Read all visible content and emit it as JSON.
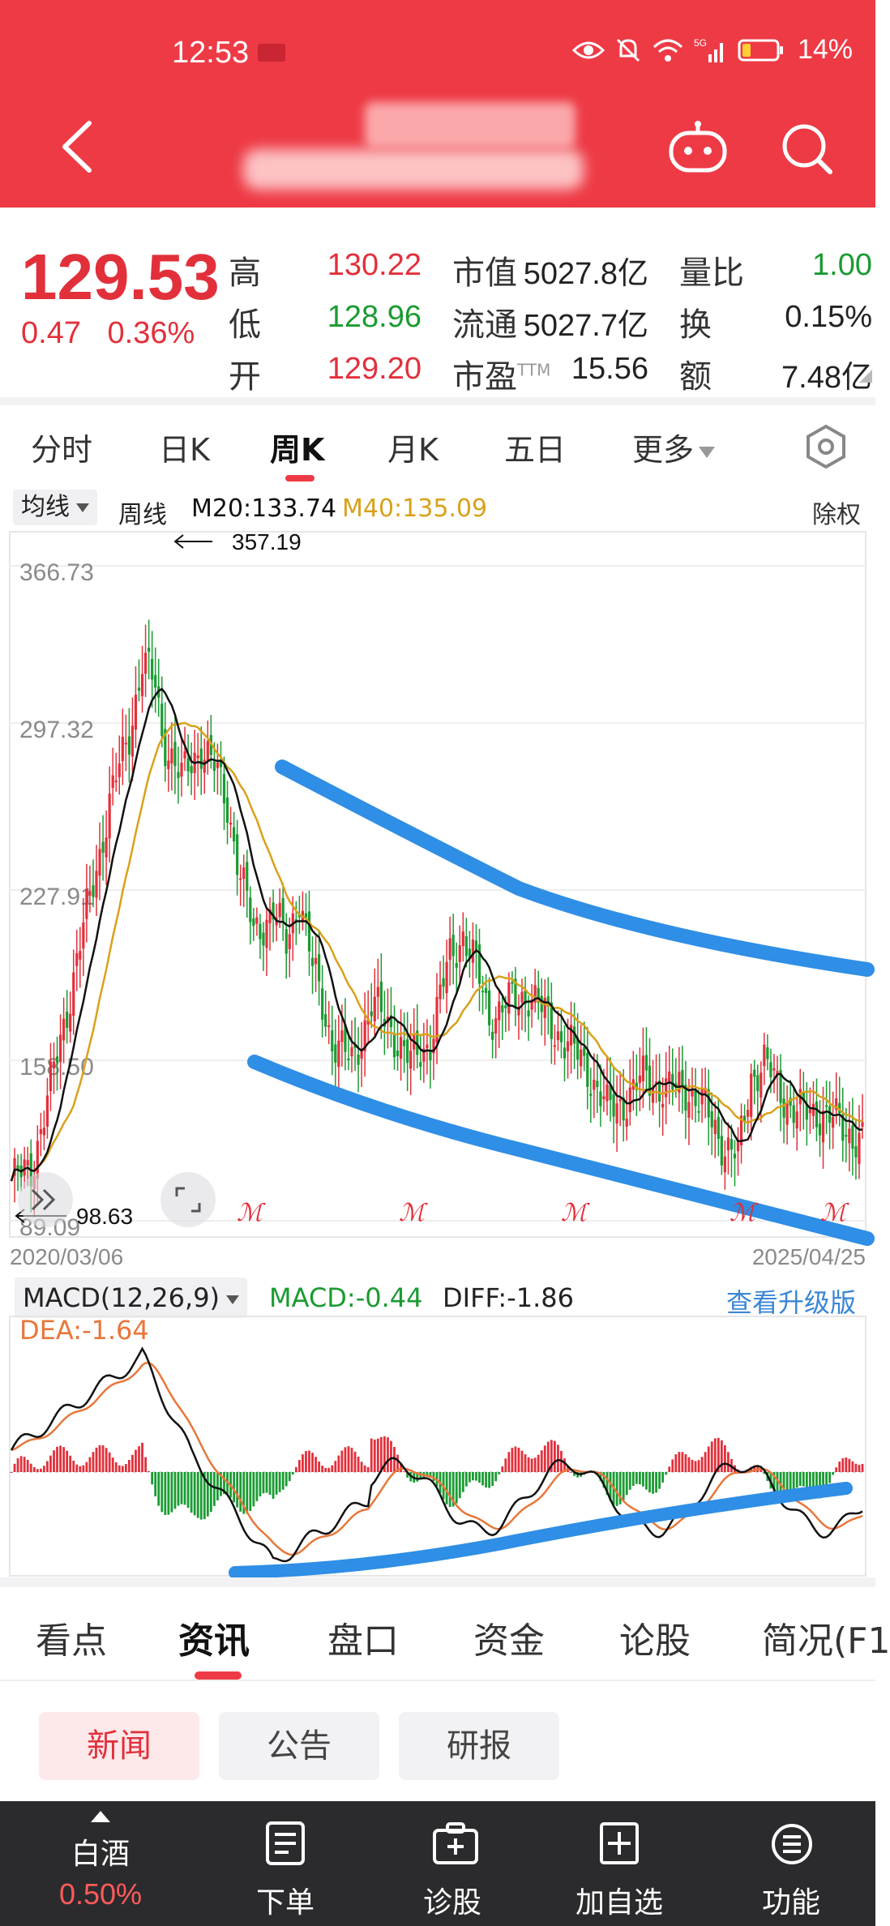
{
  "status_bar": {
    "time": "12:53",
    "network": "5G",
    "battery": "14%"
  },
  "quote": {
    "price": "129.53",
    "change": "0.47",
    "change_pct": "0.36%",
    "fields": [
      {
        "label": "高",
        "value": "130.22",
        "color": "#e2303b"
      },
      {
        "label": "低",
        "value": "128.96",
        "color": "#1a9b32"
      },
      {
        "label": "开",
        "value": "129.20",
        "color": "#e2303b"
      },
      {
        "label": "市值",
        "value": "5027.8亿",
        "color": "#222222"
      },
      {
        "label": "流通",
        "value": "5027.7亿",
        "color": "#222222"
      },
      {
        "label": "市盈",
        "sup": "TTM",
        "value": "15.56",
        "color": "#222222"
      },
      {
        "label": "量比",
        "value": "1.00",
        "color": "#1a9b32"
      },
      {
        "label": "换",
        "value": "0.15%",
        "color": "#222222"
      },
      {
        "label": "额",
        "value": "7.48亿",
        "color": "#222222"
      }
    ]
  },
  "period_tabs": [
    {
      "label": "分时"
    },
    {
      "label": "日K"
    },
    {
      "label": "周K",
      "active": true
    },
    {
      "label": "月K"
    },
    {
      "label": "五日"
    },
    {
      "label": "更多"
    }
  ],
  "ma_legend": {
    "selector": "均线",
    "type": "周线",
    "m20": "M20:133.74",
    "m40": "M40:135.09",
    "m20_color": "#111111",
    "m40_color": "#d9a11a",
    "adjust": "除权"
  },
  "kline": {
    "y_labels": [
      "366.73",
      "297.32",
      "227.91",
      "158.50",
      "89.09"
    ],
    "start_date": "2020/03/06",
    "end_date": "2025/04/25",
    "high_label": "357.19",
    "low_label": "98.63",
    "up_color": "#e2303b",
    "down_color": "#1a9b32",
    "trend_color": "#2f8ee5",
    "markers": [
      "ℳ",
      "ℳ",
      "ℳ",
      "ℳ",
      "ℳ"
    ]
  },
  "macd": {
    "selector": "MACD(12,26,9)",
    "macd": "MACD:-0.44",
    "diff": "DIFF:-1.86",
    "dea": "DEA:-1.64",
    "upgrade_link": "查看升级版",
    "macd_color": "#1a9b32",
    "dea_color": "#e8773a",
    "link_color": "#3a86d6"
  },
  "info_tabs": [
    {
      "label": "看点"
    },
    {
      "label": "资讯",
      "active": true
    },
    {
      "label": "盘口"
    },
    {
      "label": "资金"
    },
    {
      "label": "论股"
    },
    {
      "label": "简况(F1"
    }
  ],
  "news_pills": [
    {
      "label": "新闻",
      "active": true
    },
    {
      "label": "公告"
    },
    {
      "label": "研报"
    }
  ],
  "bottom_bar": {
    "sector_name": "白酒",
    "sector_change": "0.50%",
    "items": [
      {
        "label": "下单",
        "icon": "order-icon"
      },
      {
        "label": "诊股",
        "icon": "diagnose-icon"
      },
      {
        "label": "加自选",
        "icon": "add-watchlist-icon"
      },
      {
        "label": "功能",
        "icon": "menu-icon"
      }
    ]
  }
}
